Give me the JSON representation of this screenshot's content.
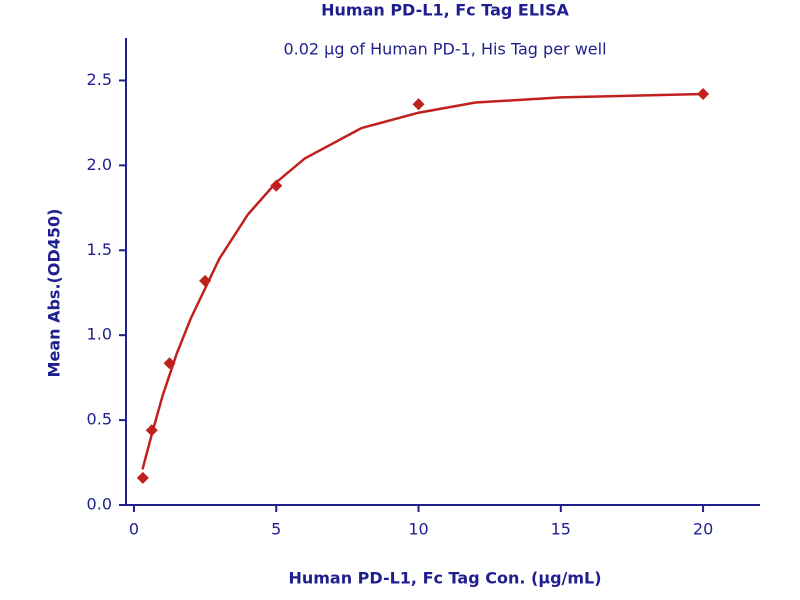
{
  "chart_data": {
    "type": "scatter",
    "title": "Human PD-L1, Fc Tag ELISA",
    "subtitle": "0.02 µg of Human PD-1, His Tag per well",
    "xlabel": "Human PD-L1, Fc Tag Con. (µg/mL)",
    "ylabel": "Mean Abs.(OD450)",
    "points": {
      "x": [
        0.3125,
        0.625,
        1.25,
        2.5,
        5,
        10,
        20
      ],
      "values": [
        0.16,
        0.44,
        0.835,
        1.32,
        1.88,
        2.36,
        2.42
      ],
      "color": "#c0211f"
    },
    "fit": {
      "x": [
        0.3,
        0.6,
        1,
        1.5,
        2,
        3,
        4,
        5,
        6,
        8,
        10,
        12,
        15,
        20
      ],
      "values": [
        0.21,
        0.4,
        0.64,
        0.89,
        1.1,
        1.45,
        1.71,
        1.9,
        2.04,
        2.22,
        2.31,
        2.37,
        2.4,
        2.42
      ],
      "color": "#c0211f"
    },
    "xlim": [
      -0.28,
      22
    ],
    "ylim": [
      0,
      2.75
    ],
    "xticks": [
      0,
      5,
      10,
      15,
      20
    ],
    "yticks": [
      {
        "value": 0,
        "label": "0.0"
      },
      0.5,
      {
        "value": 1,
        "label": "1.0"
      },
      1.5,
      {
        "value": 2,
        "label": "2.0"
      },
      2.5
    ],
    "axis_color": "#1f1f8f"
  }
}
